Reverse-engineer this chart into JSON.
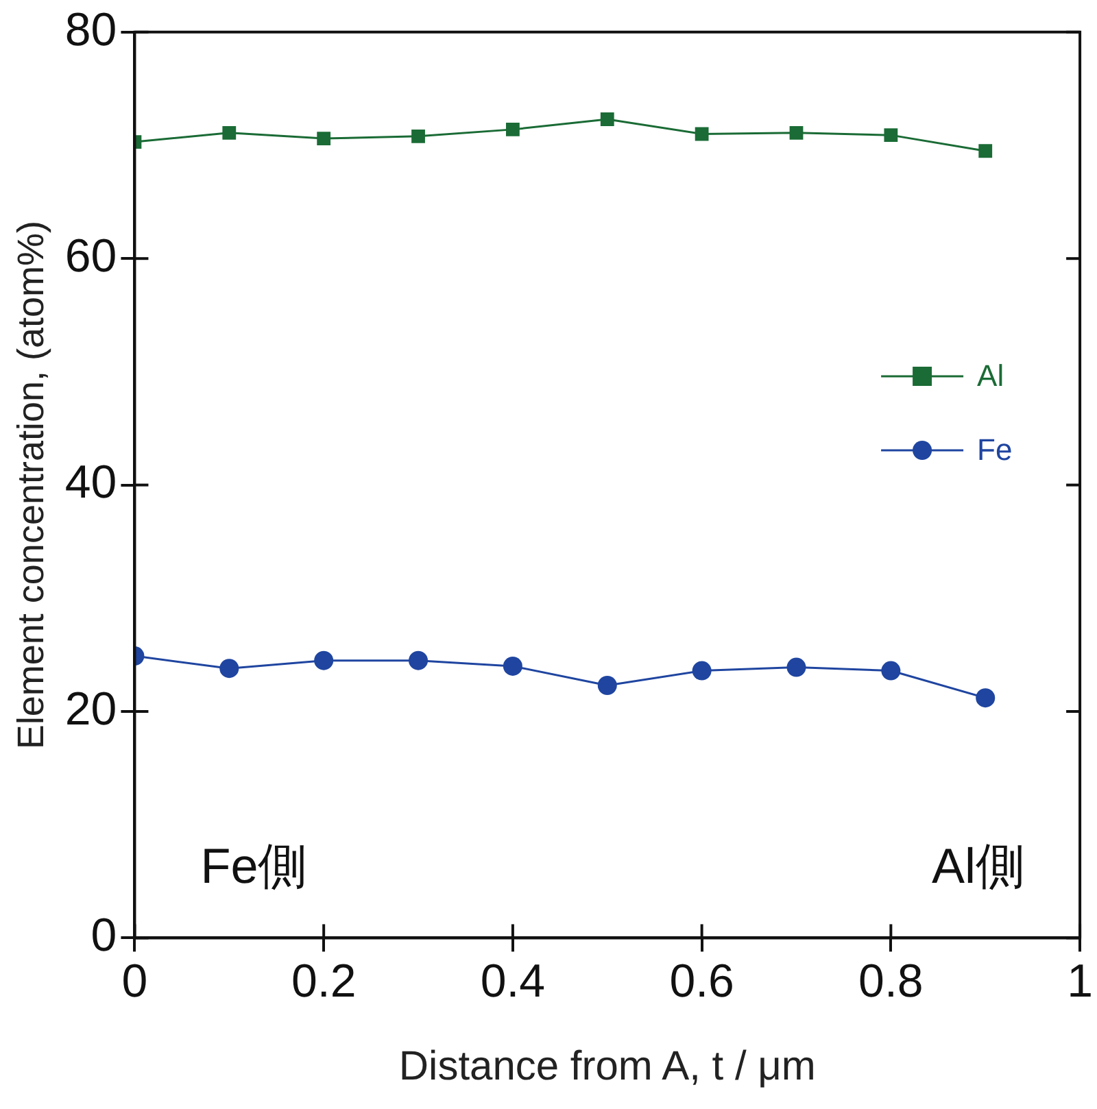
{
  "chart_data": {
    "type": "line",
    "xlabel": "Distance from A, t / μm",
    "ylabel": "Element concentration, (atom%)",
    "x": [
      0,
      0.1,
      0.2,
      0.3,
      0.4,
      0.5,
      0.6,
      0.7,
      0.8,
      0.9
    ],
    "series": [
      {
        "name": "Al",
        "color": "#1a6b35",
        "marker": "square",
        "values": [
          70.3,
          71.1,
          70.6,
          70.8,
          71.4,
          72.3,
          71.0,
          71.1,
          70.9,
          69.5
        ]
      },
      {
        "name": "Fe",
        "color": "#1f45a0",
        "marker": "circle",
        "values": [
          24.9,
          23.8,
          24.5,
          24.5,
          24.0,
          22.3,
          23.6,
          23.9,
          23.6,
          21.2
        ]
      }
    ],
    "xlim": [
      0,
      1
    ],
    "xticks": [
      0,
      0.2,
      0.4,
      0.6,
      0.8,
      1
    ],
    "ylim": [
      0,
      80
    ],
    "yticks": [
      0,
      20,
      40,
      60,
      80
    ],
    "grid": false,
    "legend": "right",
    "line_style": "solid",
    "annotations": [
      "Fe側",
      "Al側"
    ]
  }
}
